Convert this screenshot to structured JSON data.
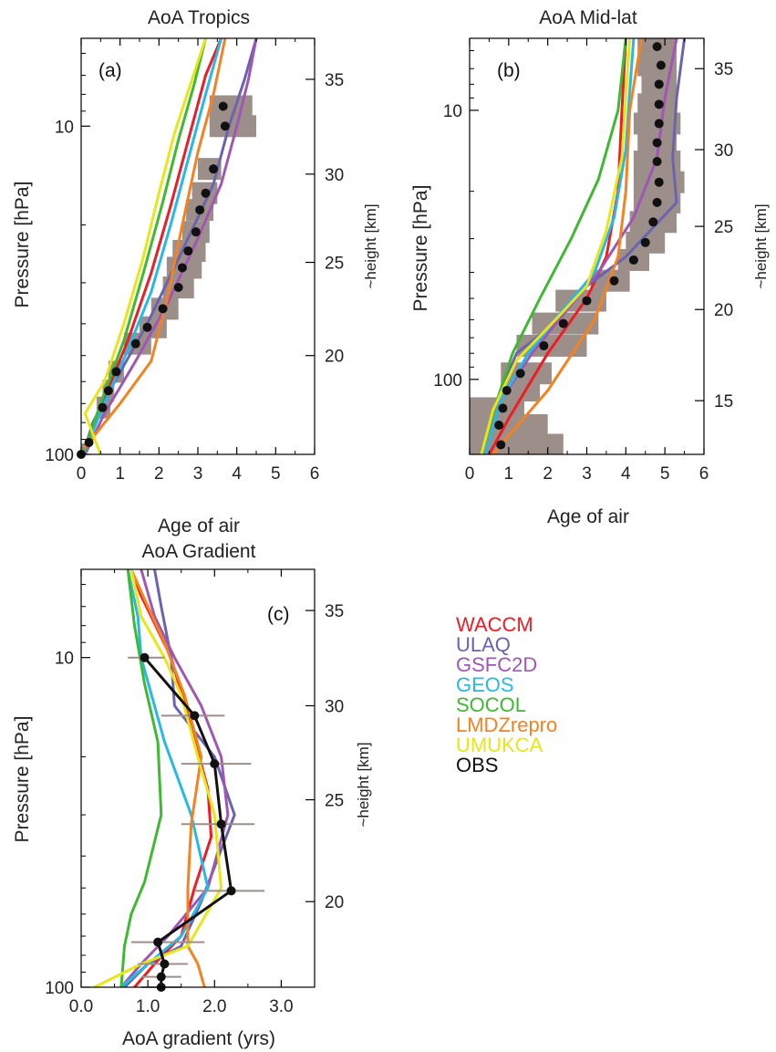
{
  "figure": {
    "legend": [
      {
        "label": "WACCM",
        "color": "#ee1c25"
      },
      {
        "label": "ULAQ",
        "color": "#6b63ad"
      },
      {
        "label": "GSFC2D",
        "color": "#a057b3"
      },
      {
        "label": "GEOS",
        "color": "#26b9e6"
      },
      {
        "label": "SOCOL",
        "color": "#3fb833"
      },
      {
        "label": "LMDZrepro",
        "color": "#f58220"
      },
      {
        "label": "UMUKCA",
        "color": "#e6e619"
      },
      {
        "label": "OBS",
        "color": "#111111"
      }
    ],
    "shade_color": "#9c8f8a"
  },
  "chart_data": [
    {
      "type": "line",
      "title": "AoA Tropics",
      "panel_label": "(a)",
      "xlabel": "Age of air",
      "ylabel": "Pressure [hPa]",
      "y2label": "~height [km]",
      "xlim": [
        0,
        6
      ],
      "ylim": [
        100,
        5.4
      ],
      "y_scale": "log",
      "x_ticks": [
        "0",
        "1",
        "2",
        "3",
        "4",
        "5",
        "6"
      ],
      "x_tick_values": [
        0,
        1,
        2,
        3,
        4,
        5,
        6
      ],
      "y_ticks": [
        "10",
        "100"
      ],
      "y_tick_values": [
        10,
        100
      ],
      "y2_ticks": [
        "20",
        "25",
        "30",
        "35"
      ],
      "y2_tick_values": [
        50,
        26,
        14,
        7.2
      ],
      "series": [
        {
          "name": "WACCM",
          "color": "#ee1c25",
          "x": [
            0.1,
            0.5,
            1.2,
            1.8,
            2.3,
            2.8,
            3.2,
            3.6
          ],
          "y": [
            100,
            72,
            45,
            28,
            17.5,
            10.5,
            7,
            5.4
          ]
        },
        {
          "name": "ULAQ",
          "color": "#6b63ad",
          "x": [
            0.05,
            0.3,
            0.8,
            1.7,
            2.6,
            3.4,
            3.8,
            4.2,
            4.5
          ],
          "y": [
            100,
            80,
            62,
            40,
            24,
            15,
            10,
            7.2,
            5.4
          ]
        },
        {
          "name": "GSFC2D",
          "color": "#a057b3",
          "x": [
            0.1,
            0.6,
            1.4,
            2.2,
            3.0,
            3.6,
            4.0,
            4.3,
            4.5
          ],
          "y": [
            100,
            75,
            52,
            35,
            22,
            15,
            10,
            7.2,
            5.4
          ]
        },
        {
          "name": "GEOS",
          "color": "#26b9e6",
          "x": [
            0.05,
            0.6,
            1.2,
            1.8,
            2.3,
            2.8,
            3.2,
            3.6
          ],
          "y": [
            100,
            70,
            48,
            32,
            20,
            12,
            8,
            5.4
          ]
        },
        {
          "name": "SOCOL",
          "color": "#3fb833",
          "x": [
            0.05,
            0.5,
            1.1,
            1.6,
            2.1,
            2.5,
            2.9,
            3.2
          ],
          "y": [
            100,
            70,
            45,
            28,
            17,
            11,
            7.5,
            5.4
          ]
        },
        {
          "name": "LMDZrepro",
          "color": "#f58220",
          "x": [
            0.1,
            1.0,
            1.8,
            2.2,
            2.6,
            3.0,
            3.4,
            3.7
          ],
          "y": [
            95,
            70,
            52,
            34,
            20,
            12,
            8,
            5.4
          ]
        },
        {
          "name": "UMUKCA",
          "color": "#e6e619",
          "x": [
            0.5,
            0.1,
            0.6,
            1.1,
            1.6,
            2.0,
            2.4,
            2.8,
            3.2
          ],
          "y": [
            100,
            75,
            60,
            40,
            25,
            16,
            10.5,
            7.5,
            5.4
          ]
        },
        {
          "name": "OBS",
          "color": "#111111",
          "marker": "dot",
          "x": [
            0.0,
            0.2,
            0.55,
            0.7,
            0.9,
            1.4,
            1.7,
            2.1,
            2.5,
            2.6,
            2.75,
            2.95,
            3.05,
            3.2,
            3.4,
            3.7,
            3.65
          ],
          "y": [
            100,
            92,
            72,
            64,
            56,
            46,
            41,
            36,
            31,
            27,
            24,
            21,
            18,
            16,
            13.5,
            10,
            8.7
          ]
        }
      ],
      "obs_range": {
        "y": [
          100,
          72,
          64,
          56,
          46,
          41,
          36,
          31,
          27,
          24,
          21,
          18,
          16,
          13.5,
          10,
          8.7
        ],
        "x_low": [
          0.0,
          0.4,
          0.55,
          0.7,
          1.1,
          1.5,
          1.8,
          2.1,
          2.2,
          2.35,
          2.6,
          2.7,
          2.85,
          3.0,
          3.3,
          3.3
        ],
        "x_high": [
          0.15,
          0.75,
          0.85,
          1.1,
          1.8,
          2.2,
          2.5,
          2.9,
          3.1,
          3.2,
          3.3,
          3.4,
          3.5,
          3.6,
          4.5,
          4.4
        ]
      }
    },
    {
      "type": "line",
      "title": "AoA Mid-lat",
      "panel_label": "(b)",
      "xlabel": "Age of air",
      "ylabel": "Pressure [hPa]",
      "y2label": "~height [km]",
      "xlim": [
        0,
        6
      ],
      "ylim": [
        190,
        5.4
      ],
      "y_scale": "log",
      "x_ticks": [
        "0",
        "1",
        "2",
        "3",
        "4",
        "5",
        "6"
      ],
      "x_tick_values": [
        0,
        1,
        2,
        3,
        4,
        5,
        6
      ],
      "y_ticks": [
        "10",
        "100"
      ],
      "y_tick_values": [
        10,
        100
      ],
      "y2_ticks": [
        "15",
        "20",
        "25",
        "30",
        "35"
      ],
      "y2_tick_values": [
        120,
        55,
        27,
        14,
        7
      ],
      "series": [
        {
          "name": "WACCM",
          "color": "#ee1c25",
          "x": [
            0.5,
            1.0,
            2.0,
            3.0,
            3.5,
            3.8,
            3.9,
            4.0
          ],
          "y": [
            190,
            140,
            80,
            50,
            35,
            20,
            10,
            5.4
          ]
        },
        {
          "name": "ULAQ",
          "color": "#6b63ad",
          "x": [
            0.3,
            0.7,
            1.2,
            2.0,
            3.0,
            4.0,
            5.3,
            5.2,
            5.3,
            5.5
          ],
          "y": [
            190,
            120,
            80,
            65,
            45,
            35,
            22,
            15,
            9,
            5.4
          ]
        },
        {
          "name": "GSFC2D",
          "color": "#a057b3",
          "x": [
            0.4,
            0.8,
            1.6,
            2.5,
            3.3,
            4.2,
            4.8,
            5.0,
            5.3
          ],
          "y": [
            190,
            120,
            80,
            55,
            40,
            25,
            15,
            9,
            5.4
          ]
        },
        {
          "name": "GEOS",
          "color": "#26b9e6",
          "x": [
            0.4,
            0.8,
            1.5,
            2.4,
            3.2,
            3.7,
            4.0,
            4.1,
            4.2
          ],
          "y": [
            190,
            120,
            80,
            55,
            40,
            25,
            14,
            8.5,
            5.4
          ]
        },
        {
          "name": "SOCOL",
          "color": "#3fb833",
          "x": [
            0.3,
            0.7,
            1.1,
            1.8,
            2.6,
            3.3,
            3.8,
            4.0
          ],
          "y": [
            190,
            120,
            80,
            50,
            30,
            18,
            10,
            5.4
          ]
        },
        {
          "name": "LMDZrepro",
          "color": "#f58220",
          "x": [
            0.6,
            1.2,
            2.0,
            3.2,
            3.8,
            4.0,
            4.1,
            4.4
          ],
          "y": [
            190,
            150,
            110,
            60,
            35,
            20,
            10,
            5.4
          ]
        },
        {
          "name": "UMUKCA",
          "color": "#e6e619",
          "x": [
            0.3,
            0.6,
            1.2,
            2.2,
            3.0,
            3.5,
            3.9,
            4.0,
            4.1
          ],
          "y": [
            190,
            130,
            85,
            60,
            45,
            28,
            15,
            9,
            5.4
          ]
        },
        {
          "name": "OBS",
          "color": "#111111",
          "marker": "dot",
          "x": [
            0.8,
            0.75,
            0.85,
            0.95,
            1.3,
            1.9,
            2.4,
            3.0,
            3.7,
            4.2,
            4.5,
            4.7,
            4.8,
            4.85,
            4.8,
            4.8,
            4.85,
            4.85,
            4.85,
            4.9,
            4.8
          ],
          "y": [
            175,
            148,
            128,
            110,
            95,
            75,
            62,
            51,
            43,
            36,
            31,
            26,
            22,
            18.5,
            15.5,
            13.2,
            11.2,
            9.5,
            8.0,
            6.8,
            5.8
          ]
        }
      ],
      "obs_range": {
        "y": [
          175,
          148,
          128,
          110,
          95,
          75,
          62,
          51,
          43,
          36,
          31,
          26,
          22,
          18.5,
          15.5,
          13.2,
          11.2,
          9.5,
          8.0,
          6.8,
          5.8
        ],
        "x_low": [
          0.0,
          0.0,
          0.0,
          0.8,
          0.8,
          1.2,
          1.6,
          2.2,
          3.1,
          3.8,
          4.0,
          4.1,
          4.2,
          4.2,
          4.2,
          4.3,
          4.2,
          4.3,
          4.4,
          4.3,
          4.3
        ],
        "x_high": [
          2.4,
          2.0,
          1.4,
          1.8,
          2.1,
          3.0,
          3.3,
          3.5,
          4.1,
          4.6,
          5.0,
          5.3,
          5.4,
          5.5,
          5.4,
          5.3,
          5.4,
          5.3,
          5.3,
          5.3,
          5.3
        ]
      }
    },
    {
      "type": "line",
      "title": "AoA Gradient",
      "panel_label": "(c)",
      "xlabel": "AoA gradient (yrs)",
      "ylabel": "Pressure [hPa]",
      "y2label": "~height [km]",
      "xlim": [
        0,
        3.5
      ],
      "ylim": [
        100,
        5.4
      ],
      "y_scale": "log",
      "x_ticks": [
        "0.0",
        "1.0",
        "2.0",
        "3.0"
      ],
      "x_tick_values": [
        0,
        1,
        2,
        3
      ],
      "y_ticks": [
        "10",
        "100"
      ],
      "y_tick_values": [
        10,
        100
      ],
      "y2_ticks": [
        "20",
        "25",
        "30",
        "35"
      ],
      "y2_tick_values": [
        55,
        27,
        14,
        7.2
      ],
      "series": [
        {
          "name": "WACCM",
          "color": "#ee1c25",
          "x": [
            0.8,
            1.1,
            1.5,
            1.7,
            1.95,
            1.9,
            1.6,
            1.35,
            1.05,
            0.9,
            0.75
          ],
          "y": [
            100,
            85,
            70,
            50,
            35,
            25,
            15,
            10,
            7.5,
            6.5,
            5.4
          ]
        },
        {
          "name": "ULAQ",
          "color": "#6b63ad",
          "x": [
            0.65,
            1.0,
            1.5,
            1.8,
            2.3,
            2.0,
            1.4,
            1.35,
            1.2,
            1.1
          ],
          "y": [
            100,
            85,
            75,
            55,
            30,
            20,
            14,
            10,
            7,
            5.4
          ]
        },
        {
          "name": "GSFC2D",
          "color": "#a057b3",
          "x": [
            0.6,
            0.9,
            1.3,
            1.9,
            2.2,
            2.1,
            1.8,
            1.4,
            1.1,
            0.9
          ],
          "y": [
            100,
            85,
            70,
            50,
            30,
            20,
            14,
            10,
            7.5,
            5.4
          ]
        },
        {
          "name": "GEOS",
          "color": "#26b9e6",
          "x": [
            0.6,
            1.0,
            1.5,
            1.9,
            1.65,
            1.25,
            0.9,
            0.85,
            0.7
          ],
          "y": [
            100,
            85,
            70,
            50,
            30,
            18,
            10,
            7.5,
            5.4
          ]
        },
        {
          "name": "SOCOL",
          "color": "#3fb833",
          "x": [
            0.6,
            0.65,
            0.75,
            0.95,
            1.2,
            1.15,
            0.95,
            0.8,
            0.7
          ],
          "y": [
            100,
            75,
            60,
            48,
            30,
            18,
            12,
            8,
            5.4
          ]
        },
        {
          "name": "LMDZrepro",
          "color": "#f58220",
          "x": [
            1.85,
            1.75,
            1.6,
            1.6,
            1.65,
            1.8,
            1.55,
            1.25,
            1.0,
            0.75
          ],
          "y": [
            100,
            85,
            75,
            50,
            32,
            20,
            13,
            9,
            7,
            5.4
          ]
        },
        {
          "name": "UMUKCA",
          "color": "#e6e619",
          "x": [
            0.2,
            0.9,
            1.6,
            2.1,
            2.0,
            1.75,
            1.5,
            1.25,
            0.9,
            0.75
          ],
          "y": [
            100,
            85,
            75,
            50,
            30,
            20,
            13,
            10,
            7.5,
            5.4
          ]
        },
        {
          "name": "OBS",
          "color": "#111111",
          "marker": "dot",
          "x": [
            1.2,
            1.2,
            1.25,
            1.15,
            2.25,
            2.1,
            2.0,
            1.7,
            0.95
          ],
          "y": [
            100,
            93,
            85,
            73,
            51,
            32,
            21,
            15,
            10
          ]
        }
      ],
      "obs_range": {
        "y": [
          100,
          93,
          85,
          73,
          51,
          32,
          21,
          15,
          10
        ],
        "x_low": [
          0.9,
          0.9,
          0.85,
          0.75,
          1.7,
          1.5,
          1.5,
          1.2,
          0.7
        ],
        "x_high": [
          1.5,
          1.5,
          1.6,
          1.85,
          2.75,
          2.6,
          2.55,
          2.15,
          1.25
        ]
      }
    }
  ]
}
